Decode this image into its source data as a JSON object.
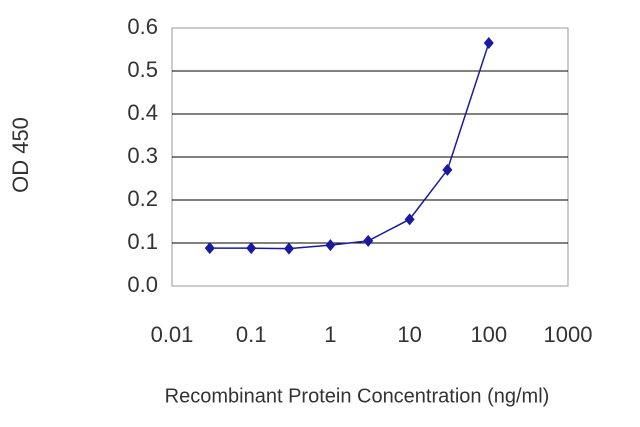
{
  "chart_data": {
    "type": "scatter",
    "x_label": "Recombinant Protein Concentration (ng/ml)",
    "y_label": "OD 450",
    "xscale": "log",
    "grid": true,
    "xlim": [
      0.01,
      1000
    ],
    "xticks": [
      0.01,
      0.1,
      1,
      10,
      100,
      1000
    ],
    "ylim": [
      0,
      0.6
    ],
    "yticks": [
      {
        "value": 0,
        "label": "0.0"
      },
      0.1,
      0.2,
      0.3,
      0.4,
      0.5,
      0.6
    ],
    "series": [
      {
        "color": "#1a1aa0",
        "x": [
          0.03,
          0.1,
          0.3,
          1,
          3,
          10,
          30,
          100
        ],
        "values": [
          0.088,
          0.088,
          0.087,
          0.095,
          0.105,
          0.155,
          0.27,
          0.565
        ]
      }
    ]
  }
}
